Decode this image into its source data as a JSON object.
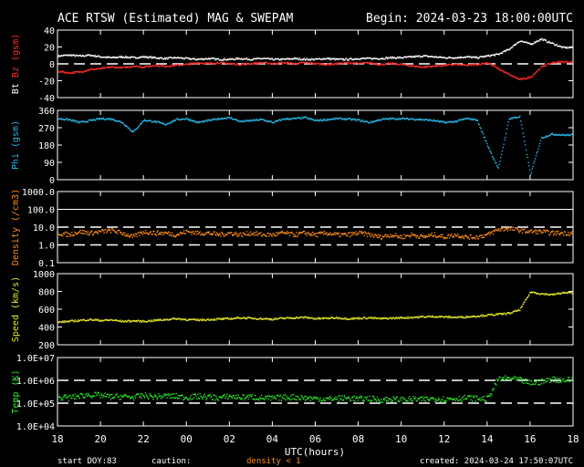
{
  "header": {
    "title": "ACE RTSW (Estimated) MAG & SWEPAM",
    "begin": "Begin: 2024-03-23 18:00:00UTC"
  },
  "footer": {
    "start_doy_label": "start DOY:",
    "start_doy_value": "83",
    "caution_label": "caution:",
    "caution_text": "density < 1",
    "created": "created: 2024-03-24 17:50:07UTC",
    "xlabel": "UTC(hours)"
  },
  "colors": {
    "bt": "#ffffff",
    "bz": "#ff2a2a",
    "phi": "#29b6e6",
    "density": "#ff8c1a",
    "speed": "#e6e62a",
    "temp": "#2ae62a",
    "caution": "#ff8c1a",
    "axis": "#ffffff",
    "background": "#000000"
  },
  "chart_data": {
    "type": "scatter",
    "x_ticks": [
      "18",
      "20",
      "22",
      "00",
      "02",
      "04",
      "06",
      "08",
      "10",
      "12",
      "14",
      "16",
      "18"
    ],
    "x_range_hours": [
      0,
      24
    ],
    "panels": [
      {
        "id": "bt_bz",
        "ylabel": "Bt",
        "ylabel2": "Bz",
        "ylabel_unit": "(gsm)",
        "yticks": [
          "40",
          "20",
          "0",
          "-20",
          "-40"
        ],
        "ytick_values": [
          40,
          20,
          0,
          -20,
          -40
        ],
        "ylim": [
          -40,
          40
        ],
        "dashed_lines": [
          0
        ],
        "solid_lines": [],
        "series": [
          {
            "name": "Bt",
            "color": "#ffffff",
            "x": [
              0,
              1,
              2,
              3,
              4,
              5,
              6,
              7,
              8,
              9,
              10,
              11,
              12,
              13,
              14,
              15,
              16,
              17,
              18,
              19,
              20,
              21,
              22,
              23,
              24,
              25,
              26,
              27,
              28,
              29,
              30,
              31,
              32,
              33,
              34,
              35,
              36,
              37,
              38,
              39,
              40,
              41,
              42,
              43,
              44,
              45,
              46,
              47
            ],
            "hours_step": 0.5,
            "values": [
              10,
              11,
              10,
              11,
              9,
              8,
              9,
              8,
              9,
              8,
              7,
              8,
              7,
              6,
              7,
              6,
              6,
              7,
              6,
              7,
              6,
              6,
              7,
              6,
              6,
              7,
              6,
              6,
              7,
              7,
              7,
              8,
              8,
              9,
              10,
              9,
              8,
              8,
              9,
              8,
              10,
              12,
              18,
              28,
              24,
              30,
              25,
              20
            ]
          },
          {
            "name": "Bz",
            "color": "#ff2a2a",
            "values": [
              -8,
              -10,
              -9,
              -6,
              -5,
              -3,
              -4,
              -2,
              -3,
              -1,
              -2,
              -1,
              0,
              2,
              1,
              2,
              1,
              0,
              1,
              2,
              1,
              2,
              1,
              2,
              1,
              0,
              1,
              2,
              1,
              2,
              0,
              1,
              0,
              -2,
              -3,
              -2,
              -1,
              0,
              -1,
              0,
              2,
              -5,
              -12,
              -18,
              -15,
              -3,
              2,
              3
            ]
          }
        ]
      },
      {
        "id": "phi",
        "ylabel": "Phi",
        "ylabel_unit": "(gsm)",
        "yticks": [
          "360",
          "270",
          "180",
          "90",
          "0"
        ],
        "ytick_values": [
          360,
          270,
          180,
          90,
          0
        ],
        "ylim": [
          0,
          360
        ],
        "dashed_lines": [],
        "solid_lines": [],
        "series": [
          {
            "name": "Phi",
            "color": "#29b6e6",
            "hours_step": 0.5,
            "values": [
              320,
              315,
              300,
              310,
              320,
              318,
              300,
              250,
              312,
              305,
              290,
              315,
              320,
              300,
              310,
              320,
              325,
              305,
              310,
              315,
              300,
              318,
              320,
              325,
              310,
              315,
              320,
              318,
              312,
              300,
              315,
              320,
              320,
              318,
              315,
              310,
              300,
              305,
              320,
              315,
              180,
              60,
              320,
              330,
              30,
              220,
              240,
              235
            ]
          }
        ]
      },
      {
        "id": "density",
        "ylabel": "Density",
        "ylabel_unit": "(/cm3)",
        "yticks": [
          "1000.0",
          "100.0",
          "10.0",
          "1.0",
          "0.1"
        ],
        "ytick_values": [
          1000,
          100,
          10,
          1,
          0.1
        ],
        "ylim": [
          0.1,
          1000
        ],
        "log_scale": true,
        "dashed_lines": [
          10,
          1
        ],
        "solid_lines": [
          100
        ],
        "series": [
          {
            "name": "Density",
            "color": "#ff8c1a",
            "hours_step": 0.5,
            "values": [
              5,
              4,
              6,
              5,
              6,
              7,
              5,
              3,
              6,
              5,
              5,
              4,
              6,
              5,
              5,
              4,
              5,
              4,
              5,
              4,
              4,
              5,
              4,
              5,
              4,
              5,
              4,
              4,
              5,
              4,
              3,
              4,
              3,
              4,
              3,
              4,
              3,
              4,
              3,
              3,
              4,
              8,
              9,
              7,
              6,
              6,
              5,
              5
            ]
          }
        ]
      },
      {
        "id": "speed",
        "ylabel": "Speed",
        "ylabel_unit": "(km/s)",
        "yticks": [
          "1000",
          "800",
          "600",
          "400",
          "200"
        ],
        "ytick_values": [
          1000,
          800,
          600,
          400,
          200
        ],
        "ylim": [
          200,
          1000
        ],
        "dashed_lines": [],
        "solid_lines": [],
        "series": [
          {
            "name": "Speed",
            "color": "#e6e62a",
            "hours_step": 0.5,
            "values": [
              460,
              470,
              480,
              490,
              480,
              485,
              470,
              475,
              470,
              480,
              490,
              500,
              490,
              485,
              490,
              495,
              500,
              510,
              505,
              500,
              495,
              505,
              510,
              515,
              500,
              505,
              510,
              500,
              505,
              510,
              500,
              505,
              510,
              515,
              520,
              525,
              520,
              515,
              520,
              530,
              540,
              550,
              560,
              600,
              800,
              780,
              770,
              790
            ]
          }
        ]
      },
      {
        "id": "temp",
        "ylabel": "Temp",
        "ylabel_unit": "(K)",
        "yticks": [
          "1.0E+07",
          "1.0E+06",
          "1.0E+05",
          "1.0E+04"
        ],
        "ytick_values": [
          10000000,
          1000000,
          100000,
          10000
        ],
        "ylim": [
          10000,
          10000000
        ],
        "log_scale": true,
        "dashed_lines": [
          1000000,
          100000
        ],
        "solid_lines": [],
        "series": [
          {
            "name": "Temp",
            "color": "#2ae62a",
            "hours_step": 0.5,
            "values": [
              200000,
              180000,
              220000,
              250000,
              230000,
              200000,
              210000,
              190000,
              230000,
              200000,
              220000,
              210000,
              190000,
              210000,
              200000,
              180000,
              210000,
              190000,
              200000,
              180000,
              170000,
              190000,
              200000,
              180000,
              170000,
              160000,
              170000,
              180000,
              160000,
              170000,
              150000,
              160000,
              150000,
              160000,
              150000,
              170000,
              160000,
              170000,
              180000,
              170000,
              160000,
              1200000,
              1300000,
              1100000,
              800000,
              900000,
              1200000,
              1100000
            ]
          }
        ]
      }
    ]
  }
}
